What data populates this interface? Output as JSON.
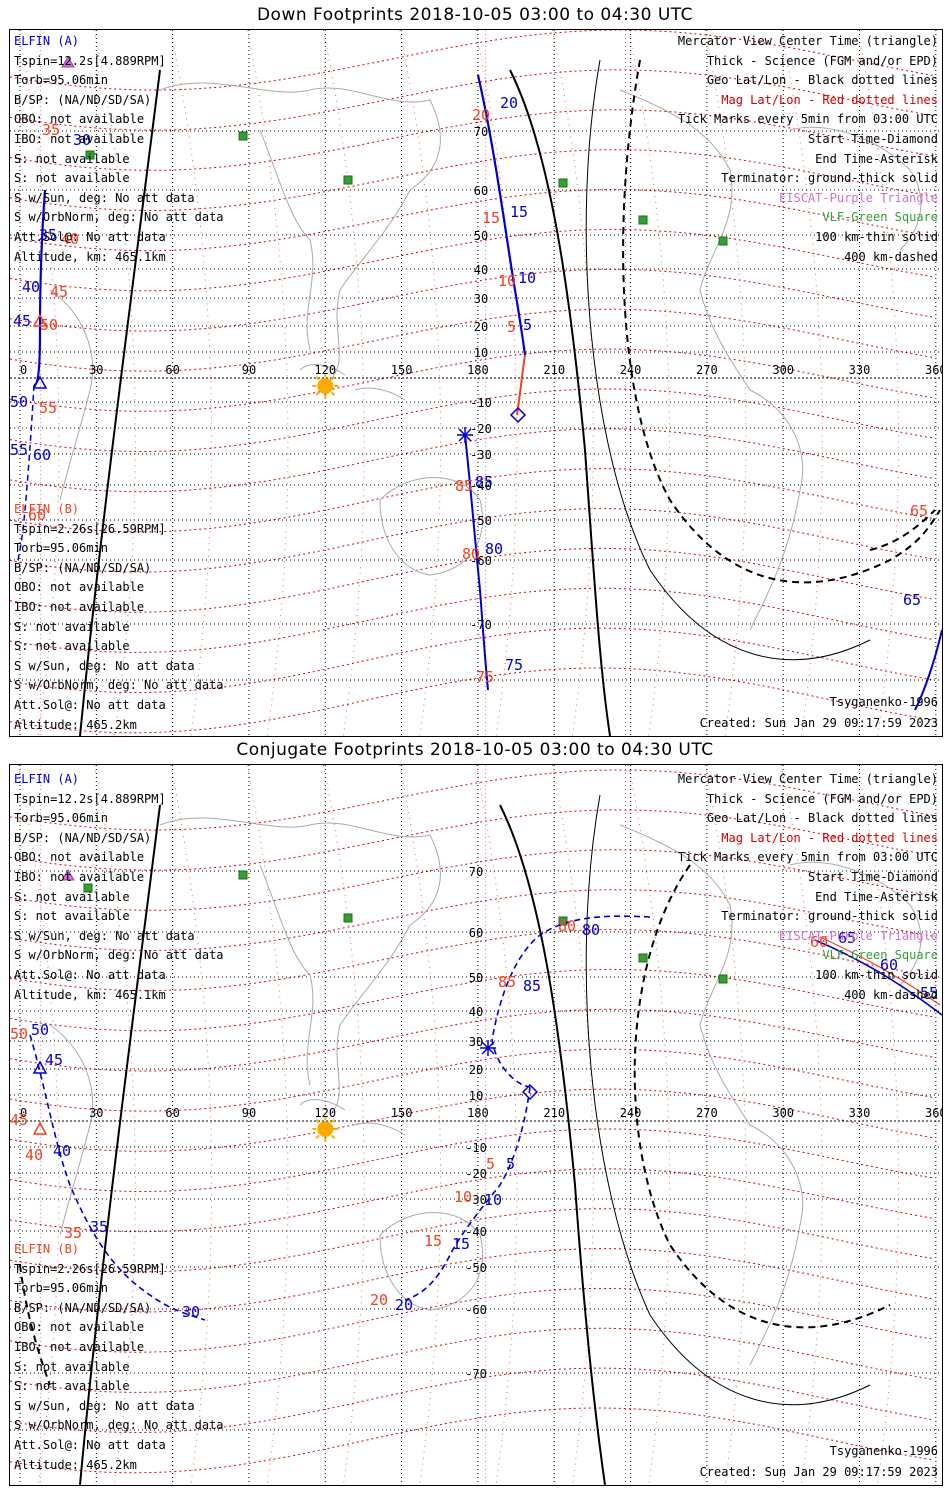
{
  "panels": [
    {
      "title": "Down Footprints 2018-10-05 03:00 to 04:30 UTC",
      "left_a": {
        "name": "ELFIN (A)",
        "lines": [
          "Tspin=12.2s[4.889RPM]",
          "Torb=95.06min",
          "B/SP: (NA/ND/SD/SA)",
          "OBO: not available",
          "IBO: not available",
          "S: not available",
          "S: not available",
          "S w/Sun, deg: No att data",
          "S w/OrbNorm, deg: No att data",
          "Att.Sol@: No att data",
          "Altitude, km: 465.1km"
        ]
      },
      "left_b": {
        "name": "ELFIN (B)",
        "lines": [
          "Tspin=2.26s[26.59RPM]",
          "Torb=95.06min",
          "B/SP: (NA/ND/SD/SA)",
          "OBO: not available",
          "IBO: not available",
          "S: not available",
          "S: not available",
          "S w/Sun, deg: No att data",
          "S w/OrbNorm, deg: No att data",
          "Att.Sol@: No att data",
          "Altitude: 465.2km"
        ]
      },
      "right": [
        "Mercator View Center Time (triangle)",
        "Thick - Science (FGM and/or EPD)",
        "Geo Lat/Lon - Black dotted lines",
        "Mag Lat/Lon - Red dotted lines",
        "Tick Marks every 5min from 03:00 UTC",
        "Start Time-Diamond",
        "End Time-Asterisk",
        "Terminator: ground-thick solid",
        "EISCAT-Purple Triangle",
        "VLF-Green Square",
        "100 km-thin solid",
        "400 km-dashed"
      ],
      "model": "Tsyganenko-1996",
      "created": "Created: Sun Jan 29 09:17:59 2023"
    },
    {
      "title": "Conjugate Footprints 2018-10-05 03:00 to 04:30 UTC",
      "left_a": {
        "name": "ELFIN (A)",
        "lines": [
          "Tspin=12.2s[4.889RPM]",
          "Torb=95.06min",
          "B/SP: (NA/ND/SD/SA)",
          "OBO: not available",
          "IBO: not available",
          "S: not available",
          "S: not available",
          "S w/Sun, deg: No att data",
          "S w/OrbNorm, deg: No att data",
          "Att.Sol@: No att data",
          "Altitude, km: 465.1km"
        ]
      },
      "left_b": {
        "name": "ELFIN (B)",
        "lines": [
          "Tspin=2.26s[26.59RPM]",
          "Torb=95.06min",
          "B/SP: (NA/ND/SD/SA)",
          "OBO: not available",
          "IBO: not available",
          "S: not available",
          "S: not available",
          "S w/Sun, deg: No att data",
          "S w/OrbNorm, deg: No att data",
          "Att.Sol@: No att data",
          "Altitude: 465.2km"
        ]
      },
      "right": [
        "Mercator View Center Time (triangle)",
        "Thick - Science (FGM and/or EPD)",
        "Geo Lat/Lon - Black dotted lines",
        "Mag Lat/Lon - Red dotted lines",
        "Tick Marks every 5min from 03:00 UTC",
        "Start Time-Diamond",
        "End Time-Asterisk",
        "Terminator: ground-thick solid",
        "EISCAT-Purple Triangle",
        "VLF-Green Square",
        "100 km-thin solid",
        "400 km-dashed"
      ],
      "model": "Tsyganenko-1996",
      "created": "Created: Sun Jan 29 09:17:59 2023"
    }
  ],
  "lon_ticks": [
    "0",
    "30",
    "60",
    "90",
    "120",
    "150",
    "180",
    "210",
    "240",
    "270",
    "300",
    "330",
    "360"
  ],
  "lat_ticks": [
    "70",
    "60",
    "50",
    "40",
    "30",
    "20",
    "10",
    "-10",
    "-20",
    "-30",
    "-40",
    "-50",
    "-60",
    "-70"
  ],
  "track_labels": {
    "down": [
      {
        "t": "20",
        "c": "red"
      },
      {
        "t": "20",
        "c": "blue"
      },
      {
        "t": "15",
        "c": "red"
      },
      {
        "t": "15",
        "c": "blue"
      },
      {
        "t": "10",
        "c": "red"
      },
      {
        "t": "10",
        "c": "blue"
      },
      {
        "t": "5",
        "c": "red"
      },
      {
        "t": "5",
        "c": "blue"
      },
      {
        "t": "85",
        "c": "red"
      },
      {
        "t": "85",
        "c": "blue"
      },
      {
        "t": "80",
        "c": "red"
      },
      {
        "t": "80",
        "c": "blue"
      },
      {
        "t": "75",
        "c": "red"
      },
      {
        "t": "75",
        "c": "blue"
      },
      {
        "t": "35",
        "c": "red"
      },
      {
        "t": "30",
        "c": "blue"
      },
      {
        "t": "35",
        "c": "blue"
      },
      {
        "t": "40",
        "c": "red"
      },
      {
        "t": "40",
        "c": "blue"
      },
      {
        "t": "45",
        "c": "red"
      },
      {
        "t": "45",
        "c": "blue"
      },
      {
        "t": "50",
        "c": "red"
      },
      {
        "t": "50",
        "c": "blue"
      },
      {
        "t": "55",
        "c": "red"
      },
      {
        "t": "55",
        "c": "blue"
      },
      {
        "t": "60",
        "c": "blue"
      },
      {
        "t": "60",
        "c": "red"
      },
      {
        "t": "65",
        "c": "red"
      },
      {
        "t": "65",
        "c": "blue"
      }
    ],
    "conj": [
      {
        "t": "5",
        "c": "red"
      },
      {
        "t": "5",
        "c": "blue"
      },
      {
        "t": "10",
        "c": "red"
      },
      {
        "t": "10",
        "c": "blue"
      },
      {
        "t": "15",
        "c": "red"
      },
      {
        "t": "15",
        "c": "blue"
      },
      {
        "t": "20",
        "c": "red"
      },
      {
        "t": "20",
        "c": "blue"
      },
      {
        "t": "85",
        "c": "red"
      },
      {
        "t": "85",
        "c": "blue"
      },
      {
        "t": "80",
        "c": "red"
      },
      {
        "t": "80",
        "c": "blue"
      },
      {
        "t": "50",
        "c": "red"
      },
      {
        "t": "50",
        "c": "blue"
      },
      {
        "t": "45",
        "c": "blue"
      },
      {
        "t": "45",
        "c": "red"
      },
      {
        "t": "40",
        "c": "red"
      },
      {
        "t": "40",
        "c": "blue"
      },
      {
        "t": "35",
        "c": "red"
      },
      {
        "t": "35",
        "c": "blue"
      },
      {
        "t": "30",
        "c": "blue"
      },
      {
        "t": "65",
        "c": "blue"
      },
      {
        "t": "60",
        "c": "red"
      },
      {
        "t": "60",
        "c": "blue"
      },
      {
        "t": "55",
        "c": "blue"
      }
    ]
  },
  "colors": {
    "elfin_a": "#0000cc",
    "elfin_b": "#ee4422",
    "mag_grid": "#dd0000",
    "geo_grid": "#000000",
    "eiscat": "#d070d0",
    "vlf": "#33a033",
    "coast": "#aaaaaa",
    "sun": "#ffaa00"
  }
}
